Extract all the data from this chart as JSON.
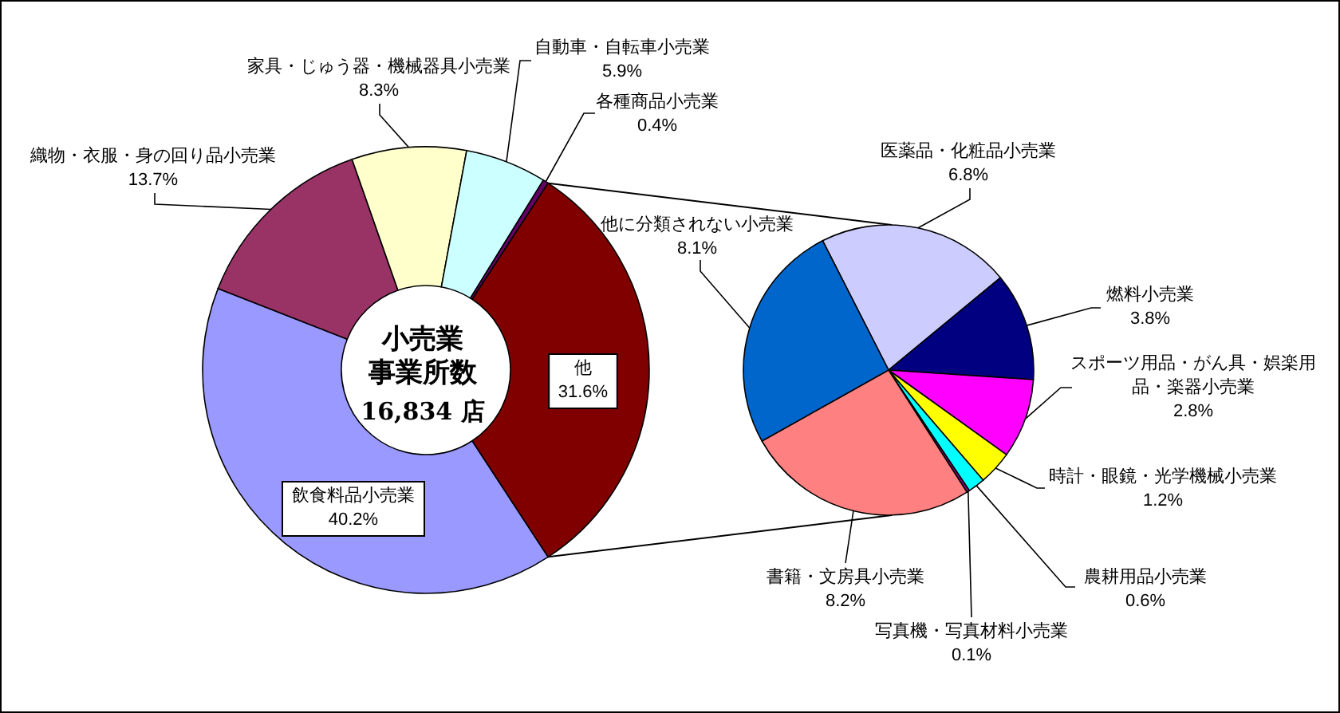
{
  "chart_data": [
    {
      "type": "donut",
      "categories": [
        "飲食料品小売業",
        "織物・衣服・身の回り品小売業",
        "家具・じゅう器・機械器具小売業",
        "自動車・自転車小売業",
        "各種商品小売業",
        "他"
      ],
      "values": [
        40.2,
        13.7,
        8.3,
        5.9,
        0.4,
        31.6
      ],
      "colors": [
        "#9999ff",
        "#993366",
        "#ffffcc",
        "#ccffff",
        "#660066",
        "#800000"
      ],
      "value_labels": [
        "40.2%",
        "13.7%",
        "8.3%",
        "5.9%",
        "0.4%",
        "31.6%"
      ],
      "annotations": [
        "小売業",
        "事業所数",
        "16,834 店"
      ]
    },
    {
      "type": "pie",
      "categories": [
        "医薬品・化粧品小売業",
        "燃料小売業",
        "スポーツ用品・がん具・娯楽用品・楽器小売業",
        "時計・眼鏡・光学機械小売業",
        "農耕用品小売業",
        "写真機・写真材料小売業",
        "書籍・文房具小売業",
        "他に分類されない小売業"
      ],
      "values": [
        6.8,
        3.8,
        2.8,
        1.2,
        0.6,
        0.1,
        8.2,
        8.1
      ],
      "colors": [
        "#ccccff",
        "#000080",
        "#ff00ff",
        "#ffff00",
        "#00ffff",
        "#800080",
        "#ff8080",
        "#0066cc"
      ],
      "value_labels": [
        "6.8%",
        "3.8%",
        "2.8%",
        "1.2%",
        "0.6%",
        "0.1%",
        "8.2%",
        "8.1%"
      ]
    }
  ]
}
